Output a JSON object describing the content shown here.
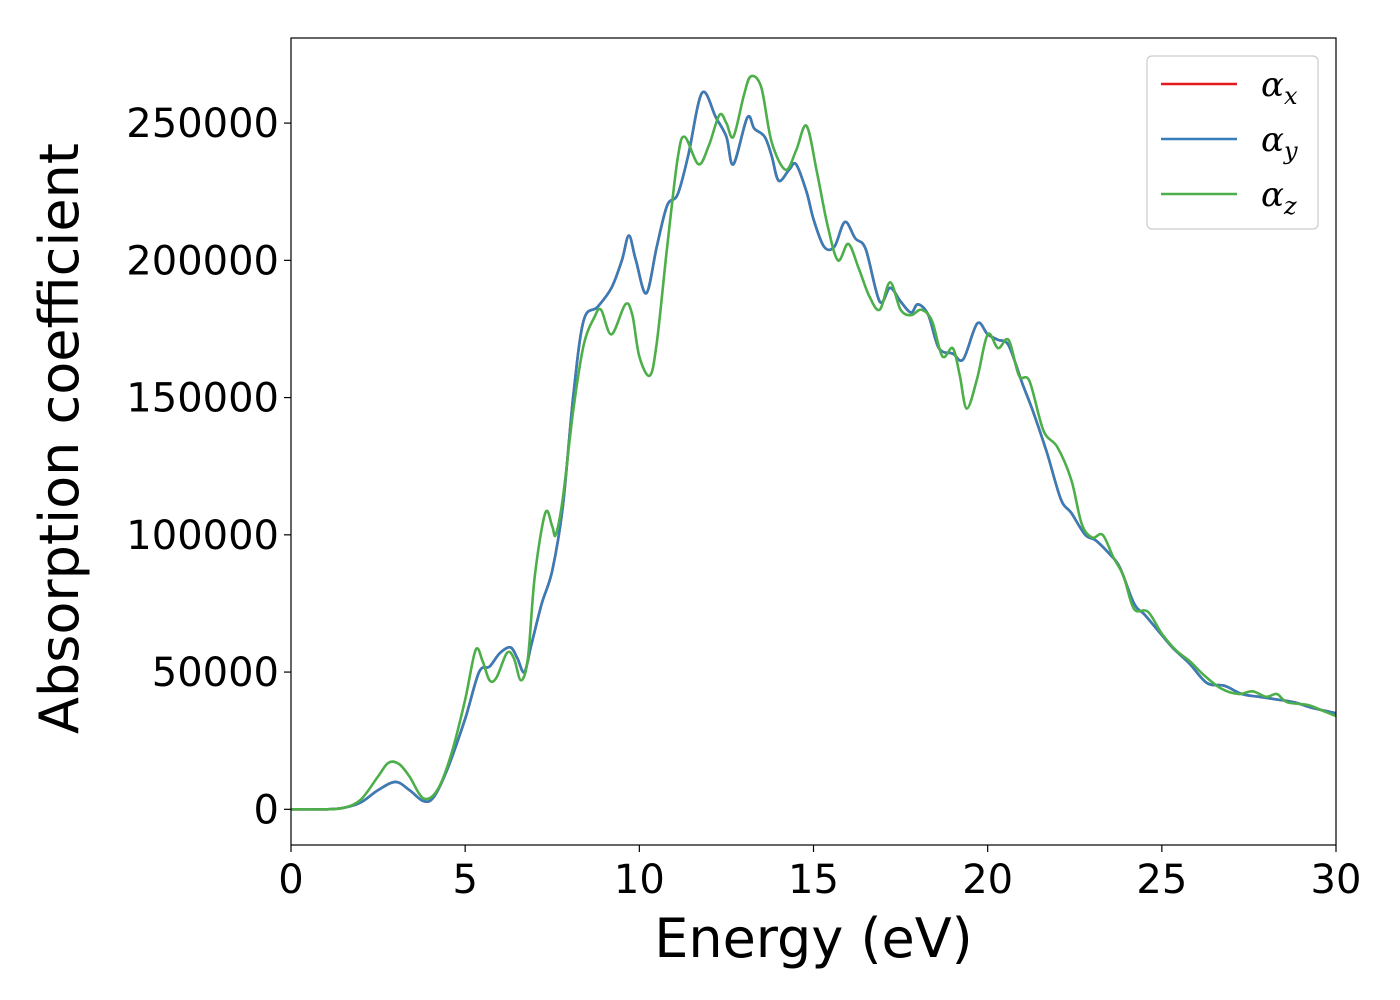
{
  "chart_data": {
    "type": "line",
    "xlabel": "Energy (eV)",
    "ylabel": "Absorption coefficient",
    "xlim": [
      0,
      30
    ],
    "ylim": [
      -13000,
      281000
    ],
    "xticks": [
      0,
      5,
      10,
      15,
      20,
      25,
      30
    ],
    "yticks": [
      0,
      50000,
      100000,
      150000,
      200000,
      250000
    ],
    "grid": false,
    "legend_position": "top-right",
    "series": [
      {
        "name": "x",
        "color": "#e41a1c",
        "points": [
          [
            0,
            0
          ],
          [
            1,
            0
          ],
          [
            1.5,
            500
          ],
          [
            2,
            2500
          ],
          [
            2.5,
            7000
          ],
          [
            3,
            10000
          ],
          [
            3.4,
            7000
          ],
          [
            3.8,
            3000
          ],
          [
            4.1,
            4500
          ],
          [
            4.5,
            15000
          ],
          [
            5,
            33000
          ],
          [
            5.4,
            50000
          ],
          [
            5.7,
            52000
          ],
          [
            6,
            57000
          ],
          [
            6.3,
            59000
          ],
          [
            6.5,
            55000
          ],
          [
            6.7,
            50000
          ],
          [
            6.9,
            60000
          ],
          [
            7.2,
            75000
          ],
          [
            7.5,
            87000
          ],
          [
            7.8,
            110000
          ],
          [
            8.1,
            150000
          ],
          [
            8.4,
            178000
          ],
          [
            8.8,
            183000
          ],
          [
            9.2,
            190000
          ],
          [
            9.5,
            200000
          ],
          [
            9.7,
            209000
          ],
          [
            9.9,
            200000
          ],
          [
            10.2,
            188000
          ],
          [
            10.5,
            205000
          ],
          [
            10.8,
            220000
          ],
          [
            11.1,
            224000
          ],
          [
            11.4,
            238000
          ],
          [
            11.8,
            261000
          ],
          [
            12.2,
            252000
          ],
          [
            12.5,
            245000
          ],
          [
            12.7,
            235000
          ],
          [
            13.1,
            252000
          ],
          [
            13.3,
            248000
          ],
          [
            13.6,
            245000
          ],
          [
            13.8,
            238000
          ],
          [
            14,
            229000
          ],
          [
            14.3,
            233000
          ],
          [
            14.5,
            235000
          ],
          [
            14.8,
            225000
          ],
          [
            15,
            215000
          ],
          [
            15.3,
            205000
          ],
          [
            15.6,
            205000
          ],
          [
            15.9,
            214000
          ],
          [
            16.2,
            208000
          ],
          [
            16.5,
            204000
          ],
          [
            16.9,
            185000
          ],
          [
            17.2,
            190000
          ],
          [
            17.5,
            185000
          ],
          [
            17.8,
            181000
          ],
          [
            18,
            184000
          ],
          [
            18.3,
            180000
          ],
          [
            18.6,
            168000
          ],
          [
            19,
            166000
          ],
          [
            19.3,
            164000
          ],
          [
            19.7,
            177000
          ],
          [
            20,
            173000
          ],
          [
            20.3,
            171000
          ],
          [
            20.6,
            169000
          ],
          [
            21,
            155000
          ],
          [
            21.3,
            145000
          ],
          [
            21.7,
            130000
          ],
          [
            22.1,
            113000
          ],
          [
            22.4,
            108000
          ],
          [
            22.8,
            100000
          ],
          [
            23.1,
            98000
          ],
          [
            23.5,
            93000
          ],
          [
            23.8,
            88000
          ],
          [
            24.2,
            75000
          ],
          [
            24.5,
            71000
          ],
          [
            24.9,
            65000
          ],
          [
            25.3,
            59000
          ],
          [
            25.8,
            53000
          ],
          [
            26.3,
            46000
          ],
          [
            26.8,
            45000
          ],
          [
            27.3,
            42000
          ],
          [
            27.8,
            41000
          ],
          [
            28.3,
            40000
          ],
          [
            28.8,
            39000
          ],
          [
            29.3,
            37000
          ],
          [
            30,
            35000
          ]
        ]
      },
      {
        "name": "y",
        "color": "#377eb8",
        "points": [
          [
            0,
            0
          ],
          [
            1,
            0
          ],
          [
            1.5,
            500
          ],
          [
            2,
            2500
          ],
          [
            2.5,
            7000
          ],
          [
            3,
            10000
          ],
          [
            3.4,
            7000
          ],
          [
            3.8,
            3000
          ],
          [
            4.1,
            4500
          ],
          [
            4.5,
            15000
          ],
          [
            5,
            33000
          ],
          [
            5.4,
            50000
          ],
          [
            5.7,
            52000
          ],
          [
            6,
            57000
          ],
          [
            6.3,
            59000
          ],
          [
            6.5,
            55000
          ],
          [
            6.7,
            50000
          ],
          [
            6.9,
            60000
          ],
          [
            7.2,
            75000
          ],
          [
            7.5,
            87000
          ],
          [
            7.8,
            110000
          ],
          [
            8.1,
            150000
          ],
          [
            8.4,
            178000
          ],
          [
            8.8,
            183000
          ],
          [
            9.2,
            190000
          ],
          [
            9.5,
            200000
          ],
          [
            9.7,
            209000
          ],
          [
            9.9,
            200000
          ],
          [
            10.2,
            188000
          ],
          [
            10.5,
            205000
          ],
          [
            10.8,
            220000
          ],
          [
            11.1,
            224000
          ],
          [
            11.4,
            238000
          ],
          [
            11.8,
            261000
          ],
          [
            12.2,
            252000
          ],
          [
            12.5,
            245000
          ],
          [
            12.7,
            235000
          ],
          [
            13.1,
            252000
          ],
          [
            13.3,
            248000
          ],
          [
            13.6,
            245000
          ],
          [
            13.8,
            238000
          ],
          [
            14,
            229000
          ],
          [
            14.3,
            233000
          ],
          [
            14.5,
            235000
          ],
          [
            14.8,
            225000
          ],
          [
            15,
            215000
          ],
          [
            15.3,
            205000
          ],
          [
            15.6,
            205000
          ],
          [
            15.9,
            214000
          ],
          [
            16.2,
            208000
          ],
          [
            16.5,
            204000
          ],
          [
            16.9,
            185000
          ],
          [
            17.2,
            190000
          ],
          [
            17.5,
            185000
          ],
          [
            17.8,
            181000
          ],
          [
            18,
            184000
          ],
          [
            18.3,
            180000
          ],
          [
            18.6,
            168000
          ],
          [
            19,
            166000
          ],
          [
            19.3,
            164000
          ],
          [
            19.7,
            177000
          ],
          [
            20,
            173000
          ],
          [
            20.3,
            171000
          ],
          [
            20.6,
            169000
          ],
          [
            21,
            155000
          ],
          [
            21.3,
            145000
          ],
          [
            21.7,
            130000
          ],
          [
            22.1,
            113000
          ],
          [
            22.4,
            108000
          ],
          [
            22.8,
            100000
          ],
          [
            23.1,
            98000
          ],
          [
            23.5,
            93000
          ],
          [
            23.8,
            88000
          ],
          [
            24.2,
            75000
          ],
          [
            24.5,
            71000
          ],
          [
            24.9,
            65000
          ],
          [
            25.3,
            59000
          ],
          [
            25.8,
            53000
          ],
          [
            26.3,
            46000
          ],
          [
            26.8,
            45000
          ],
          [
            27.3,
            42000
          ],
          [
            27.8,
            41000
          ],
          [
            28.3,
            40000
          ],
          [
            28.8,
            39000
          ],
          [
            29.3,
            37000
          ],
          [
            30,
            35000
          ]
        ]
      },
      {
        "name": "z",
        "color": "#4daf4a",
        "points": [
          [
            0,
            0
          ],
          [
            1,
            0
          ],
          [
            1.5,
            500
          ],
          [
            2,
            3500
          ],
          [
            2.5,
            12000
          ],
          [
            2.8,
            17000
          ],
          [
            3.1,
            16500
          ],
          [
            3.4,
            12000
          ],
          [
            3.8,
            4000
          ],
          [
            4.2,
            7000
          ],
          [
            4.6,
            20000
          ],
          [
            5,
            40000
          ],
          [
            5.3,
            58000
          ],
          [
            5.5,
            54000
          ],
          [
            5.7,
            47000
          ],
          [
            5.9,
            48000
          ],
          [
            6.2,
            57000
          ],
          [
            6.4,
            55000
          ],
          [
            6.6,
            47000
          ],
          [
            6.8,
            55000
          ],
          [
            7,
            85000
          ],
          [
            7.3,
            108000
          ],
          [
            7.5,
            103000
          ],
          [
            7.6,
            100000
          ],
          [
            7.8,
            113000
          ],
          [
            8.1,
            145000
          ],
          [
            8.4,
            169000
          ],
          [
            8.7,
            179000
          ],
          [
            8.9,
            182000
          ],
          [
            9.2,
            173000
          ],
          [
            9.6,
            184000
          ],
          [
            9.8,
            180000
          ],
          [
            10,
            165000
          ],
          [
            10.3,
            158000
          ],
          [
            10.5,
            170000
          ],
          [
            10.8,
            205000
          ],
          [
            11.1,
            237000
          ],
          [
            11.3,
            245000
          ],
          [
            11.7,
            235000
          ],
          [
            12,
            242000
          ],
          [
            12.3,
            253000
          ],
          [
            12.5,
            250000
          ],
          [
            12.7,
            245000
          ],
          [
            13,
            260000
          ],
          [
            13.2,
            267000
          ],
          [
            13.5,
            263000
          ],
          [
            13.8,
            243000
          ],
          [
            14.2,
            233000
          ],
          [
            14.5,
            240000
          ],
          [
            14.8,
            249000
          ],
          [
            15.1,
            232000
          ],
          [
            15.4,
            213000
          ],
          [
            15.7,
            200000
          ],
          [
            16,
            206000
          ],
          [
            16.3,
            197000
          ],
          [
            16.6,
            187000
          ],
          [
            16.9,
            182000
          ],
          [
            17.2,
            192000
          ],
          [
            17.5,
            182000
          ],
          [
            17.8,
            180000
          ],
          [
            18.1,
            182000
          ],
          [
            18.4,
            178000
          ],
          [
            18.7,
            165000
          ],
          [
            19,
            168000
          ],
          [
            19.2,
            158000
          ],
          [
            19.4,
            146000
          ],
          [
            19.7,
            157000
          ],
          [
            20,
            173000
          ],
          [
            20.3,
            168000
          ],
          [
            20.6,
            171000
          ],
          [
            20.9,
            158000
          ],
          [
            21.2,
            156000
          ],
          [
            21.6,
            138000
          ],
          [
            22,
            132000
          ],
          [
            22.4,
            120000
          ],
          [
            22.7,
            104000
          ],
          [
            23,
            99000
          ],
          [
            23.3,
            100000
          ],
          [
            23.6,
            92000
          ],
          [
            23.9,
            85000
          ],
          [
            24.2,
            73000
          ],
          [
            24.6,
            72000
          ],
          [
            25,
            64000
          ],
          [
            25.4,
            58000
          ],
          [
            25.8,
            54000
          ],
          [
            26.2,
            49000
          ],
          [
            26.7,
            44000
          ],
          [
            27.2,
            42000
          ],
          [
            27.6,
            43000
          ],
          [
            28,
            41000
          ],
          [
            28.3,
            42000
          ],
          [
            28.6,
            39000
          ],
          [
            29.2,
            38000
          ],
          [
            29.6,
            36000
          ],
          [
            30,
            34000
          ]
        ]
      }
    ]
  }
}
